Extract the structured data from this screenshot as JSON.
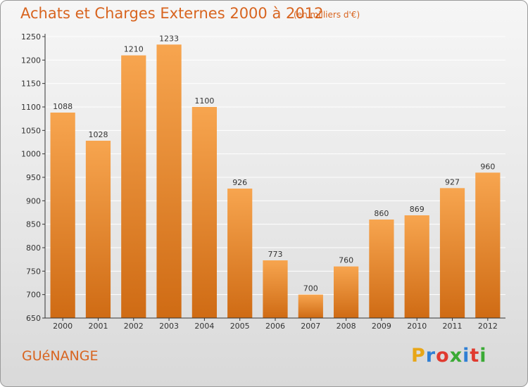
{
  "header": {
    "title": "Achats et Charges Externes 2000 à 2012",
    "unit": "(en milliers d'€)"
  },
  "footer": {
    "commune": "GUéNANGE",
    "logo": {
      "letters": [
        "P",
        "r",
        "o",
        "x",
        "i",
        "t",
        "i"
      ],
      "colors": [
        "#e8a617",
        "#2f7fd4",
        "#e03a2f",
        "#3aaa35",
        "#2f7fd4",
        "#e03a2f",
        "#3aaa35"
      ]
    }
  },
  "colors": {
    "bar_light": "#f7a54f",
    "bar_dark": "#cf6b14",
    "axis": "#333333",
    "grid": "#ffffff"
  },
  "chart_data": {
    "type": "bar",
    "categories": [
      "2000",
      "2001",
      "2002",
      "2003",
      "2004",
      "2005",
      "2006",
      "2007",
      "2008",
      "2009",
      "2010",
      "2011",
      "2012"
    ],
    "values": [
      1088,
      1028,
      1210,
      1233,
      1100,
      926,
      773,
      700,
      760,
      860,
      869,
      927,
      960
    ],
    "ylim": [
      650,
      1250
    ],
    "yticks": [
      650,
      700,
      750,
      800,
      850,
      900,
      950,
      1000,
      1050,
      1100,
      1150,
      1200,
      1250
    ],
    "grid": true,
    "data_labels": true
  }
}
